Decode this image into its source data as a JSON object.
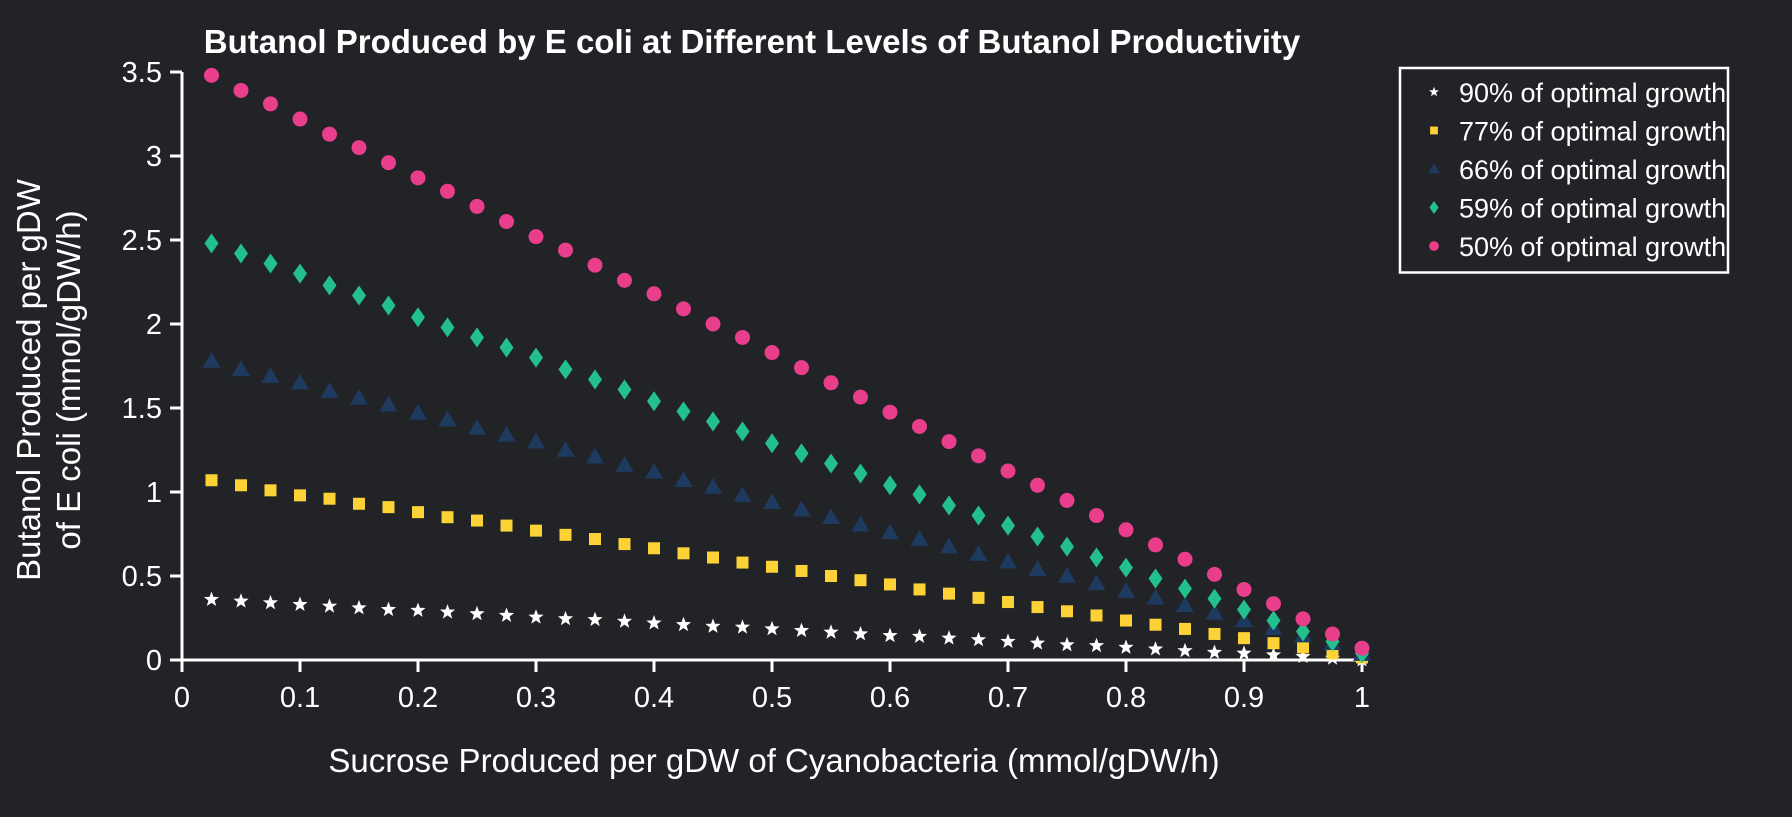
{
  "chart_data": {
    "type": "scatter",
    "title": "Butanol Produced by E coli at Different Levels of Butanol Productivity",
    "xlabel": "Sucrose Produced per gDW of Cyanobacteria (mmol/gDW/h)",
    "ylabel_lines": [
      "Butanol Produced per gDW",
      "of E coli (mmol/gDW/h)"
    ],
    "xlim": [
      0,
      1
    ],
    "ylim": [
      0,
      3.5
    ],
    "xticks": [
      "0",
      "0.1",
      "0.2",
      "0.3",
      "0.4",
      "0.5",
      "0.6",
      "0.7",
      "0.8",
      "0.9",
      "1"
    ],
    "yticks": [
      "0",
      "0.5",
      "1",
      "1.5",
      "2",
      "2.5",
      "3",
      "3.5"
    ],
    "grid": false,
    "legend_position": "top-right",
    "x": [
      0.025,
      0.05,
      0.075,
      0.1,
      0.125,
      0.15,
      0.175,
      0.2,
      0.225,
      0.25,
      0.275,
      0.3,
      0.325,
      0.35,
      0.375,
      0.4,
      0.425,
      0.45,
      0.475,
      0.5,
      0.525,
      0.55,
      0.575,
      0.6,
      0.625,
      0.65,
      0.675,
      0.7,
      0.725,
      0.75,
      0.775,
      0.8,
      0.825,
      0.85,
      0.875,
      0.9,
      0.925,
      0.95,
      0.975,
      1.0
    ],
    "series": [
      {
        "name": "90% of optimal growth",
        "marker": "star",
        "color": "#ffffff",
        "values": [
          0.36,
          0.35,
          0.34,
          0.33,
          0.32,
          0.31,
          0.3,
          0.295,
          0.285,
          0.275,
          0.265,
          0.255,
          0.245,
          0.24,
          0.23,
          0.22,
          0.21,
          0.2,
          0.195,
          0.185,
          0.175,
          0.165,
          0.155,
          0.145,
          0.14,
          0.13,
          0.12,
          0.11,
          0.1,
          0.09,
          0.085,
          0.075,
          0.065,
          0.055,
          0.045,
          0.04,
          0.03,
          0.02,
          0.01,
          0.0
        ]
      },
      {
        "name": "77% of optimal growth",
        "marker": "square",
        "color": "#fdd237",
        "values": [
          1.07,
          1.04,
          1.01,
          0.98,
          0.96,
          0.93,
          0.91,
          0.88,
          0.85,
          0.83,
          0.8,
          0.77,
          0.745,
          0.72,
          0.69,
          0.665,
          0.635,
          0.61,
          0.58,
          0.555,
          0.53,
          0.5,
          0.475,
          0.45,
          0.42,
          0.395,
          0.37,
          0.345,
          0.315,
          0.29,
          0.265,
          0.235,
          0.21,
          0.185,
          0.155,
          0.13,
          0.1,
          0.075,
          0.04,
          0.015
        ]
      },
      {
        "name": "66% of optimal growth",
        "marker": "triangle",
        "color": "#1f3a5f",
        "values": [
          1.78,
          1.73,
          1.69,
          1.65,
          1.6,
          1.56,
          1.52,
          1.47,
          1.43,
          1.38,
          1.34,
          1.3,
          1.25,
          1.21,
          1.16,
          1.12,
          1.07,
          1.03,
          0.98,
          0.94,
          0.895,
          0.85,
          0.805,
          0.76,
          0.72,
          0.675,
          0.63,
          0.585,
          0.54,
          0.5,
          0.455,
          0.41,
          0.37,
          0.325,
          0.28,
          0.235,
          0.19,
          0.145,
          0.1,
          0.035
        ]
      },
      {
        "name": "59% of optimal growth",
        "marker": "diamond",
        "color": "#23c08e",
        "values": [
          2.48,
          2.42,
          2.36,
          2.3,
          2.23,
          2.17,
          2.11,
          2.04,
          1.98,
          1.92,
          1.86,
          1.8,
          1.73,
          1.67,
          1.61,
          1.54,
          1.48,
          1.42,
          1.36,
          1.29,
          1.23,
          1.17,
          1.11,
          1.04,
          0.985,
          0.92,
          0.86,
          0.8,
          0.735,
          0.675,
          0.61,
          0.55,
          0.485,
          0.425,
          0.365,
          0.3,
          0.235,
          0.17,
          0.11,
          0.04
        ]
      },
      {
        "name": "50% of optimal growth",
        "marker": "circle",
        "color": "#e83e8c",
        "values": [
          3.48,
          3.39,
          3.31,
          3.22,
          3.13,
          3.05,
          2.96,
          2.87,
          2.79,
          2.7,
          2.61,
          2.52,
          2.44,
          2.35,
          2.26,
          2.18,
          2.09,
          2.0,
          1.92,
          1.83,
          1.74,
          1.65,
          1.565,
          1.475,
          1.39,
          1.3,
          1.215,
          1.125,
          1.04,
          0.95,
          0.86,
          0.775,
          0.685,
          0.6,
          0.51,
          0.42,
          0.335,
          0.245,
          0.155,
          0.07
        ]
      }
    ]
  }
}
